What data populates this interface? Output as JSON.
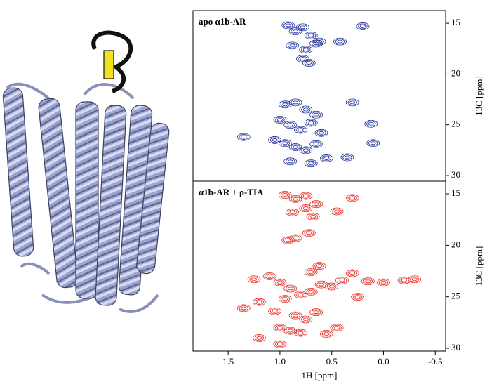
{
  "chart_data": [
    {
      "type": "scatter",
      "title": "apo α1b-AR",
      "color": "#1f2f9a",
      "xlim": [
        1.84,
        -0.6
      ],
      "ylim": [
        30.55,
        13.75
      ],
      "yticks": [
        15,
        20,
        25,
        30
      ],
      "y_label": "13C [ppm]",
      "x": [
        0.92,
        0.85,
        0.78,
        0.7,
        0.62,
        0.88,
        0.75,
        0.65,
        0.42,
        0.2,
        0.72,
        0.78,
        0.95,
        0.85,
        0.75,
        0.65,
        1.0,
        0.9,
        0.8,
        0.7,
        0.6,
        1.05,
        0.95,
        0.85,
        0.75,
        0.65,
        0.55,
        1.35,
        0.3,
        0.12,
        0.1,
        0.35,
        0.9,
        0.7
      ],
      "values": [
        15.2,
        15.8,
        15.4,
        16.2,
        16.8,
        17.2,
        17.6,
        17.0,
        16.8,
        15.3,
        18.9,
        18.5,
        23.0,
        22.8,
        23.5,
        24.0,
        24.5,
        25.0,
        25.5,
        24.8,
        25.8,
        26.5,
        26.8,
        27.2,
        27.5,
        26.9,
        28.3,
        26.2,
        22.8,
        24.9,
        26.8,
        28.2,
        28.6,
        28.8
      ]
    },
    {
      "type": "scatter",
      "title": "α1b-AR + ρ-TIA",
      "color": "#e8281e",
      "xlim": [
        1.84,
        -0.6
      ],
      "ylim": [
        30.27,
        13.77
      ],
      "yticks": [
        15,
        20,
        25,
        30
      ],
      "xticks": [
        1.5,
        {
          "value": 1,
          "label": "1.0"
        },
        0.5,
        {
          "value": 0,
          "label": "0.0"
        },
        -0.5
      ],
      "x_label": "1H [ppm]",
      "y_label": "13C [ppm]",
      "x": [
        0.95,
        0.85,
        0.75,
        0.65,
        0.88,
        0.75,
        0.68,
        0.45,
        0.3,
        0.72,
        0.85,
        0.92,
        0.62,
        0.7,
        1.25,
        1.1,
        1.0,
        0.9,
        0.8,
        0.7,
        0.6,
        0.5,
        1.35,
        1.2,
        1.05,
        0.95,
        0.85,
        0.75,
        0.65,
        1.0,
        0.9,
        0.8,
        0.4,
        0.3,
        0.15,
        0.0,
        -0.2,
        -0.3,
        0.25,
        0.45,
        0.55,
        1.2,
        1.0
      ],
      "values": [
        15.1,
        15.5,
        15.2,
        16.0,
        16.8,
        16.4,
        17.2,
        16.7,
        15.4,
        18.8,
        19.3,
        19.5,
        22.0,
        22.6,
        23.3,
        23.0,
        23.6,
        24.2,
        24.8,
        24.5,
        23.8,
        24.0,
        26.1,
        25.5,
        26.4,
        25.2,
        26.8,
        27.2,
        26.5,
        28.0,
        28.3,
        28.5,
        23.4,
        22.7,
        23.5,
        23.6,
        23.4,
        23.3,
        25.0,
        28.0,
        28.6,
        29.0,
        29.6
      ]
    }
  ]
}
